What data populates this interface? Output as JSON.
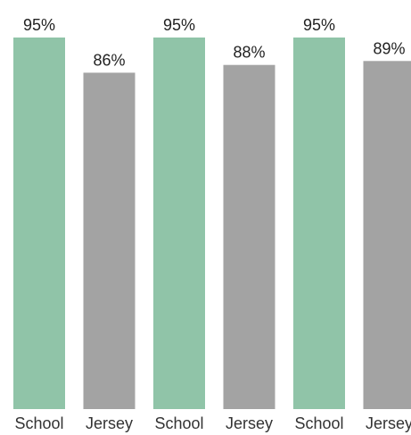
{
  "chart_data": {
    "type": "bar",
    "categories": [
      "School",
      "Jersey",
      "School",
      "Jersey",
      "School",
      "Jersey"
    ],
    "values": [
      95,
      86,
      95,
      88,
      95,
      89
    ],
    "value_labels": [
      "95%",
      "86%",
      "95%",
      "88%",
      "95%",
      "89%"
    ],
    "colors": [
      "#90c4a8",
      "#a3a3a3",
      "#90c4a8",
      "#a3a3a3",
      "#90c4a8",
      "#a3a3a3"
    ],
    "ylim": [
      0,
      95
    ],
    "grid": false,
    "legend": "none"
  }
}
